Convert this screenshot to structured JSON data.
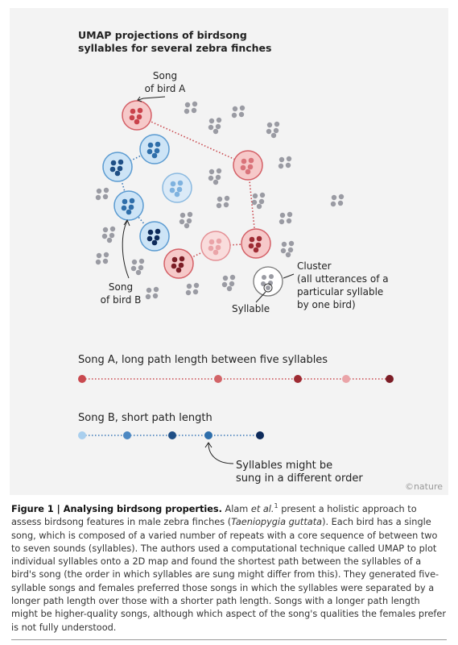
{
  "figure": {
    "title_lines": [
      "UMAP projections of birdsong",
      "syllables for several zebra finches"
    ],
    "song_a_label": [
      "Song",
      "of bird A"
    ],
    "song_b_label": [
      "Song",
      "of bird B"
    ],
    "cluster_label": [
      "Cluster",
      "(all utterances of a",
      "particular syllable",
      "by one bird)"
    ],
    "syllable_label": "Syllable",
    "song_a_path": "Song A, long path length between five syllables",
    "song_b_path": "Song B, short path length",
    "order_note": [
      "Syllables might be",
      "sung in a different order"
    ],
    "credit": "©nature"
  },
  "caption": {
    "runs": [
      {
        "text": "Figure 1 | Analysing birdsong properties.",
        "style": "bold"
      },
      {
        "text": " Alam ",
        "style": "normal"
      },
      {
        "text": "et al.",
        "style": "italic"
      },
      {
        "text": "1",
        "style": "sup"
      },
      {
        "text": " present a holistic approach to assess birdsong features in male zebra finches (",
        "style": "normal"
      },
      {
        "text": "Taeniopygia guttata",
        "style": "italic"
      },
      {
        "text": "). Each bird has a single song, which is composed of a varied number of repeats with a core sequence of between two to seven sounds (syllables). The authors used a computational technique called UMAP to plot individual syllables onto a 2D map and found the shortest path between the syllables of a bird's song (the order in which syllables are sung might differ from this). They generated five-syllable songs and females preferred those songs in which the syllables were separated by a longer path length over those with a shorter path length. Songs with a longer path length might be higher-quality songs, although which aspect of the song's qualities the females prefer is not fully understood.",
        "style": "normal"
      }
    ]
  }
}
